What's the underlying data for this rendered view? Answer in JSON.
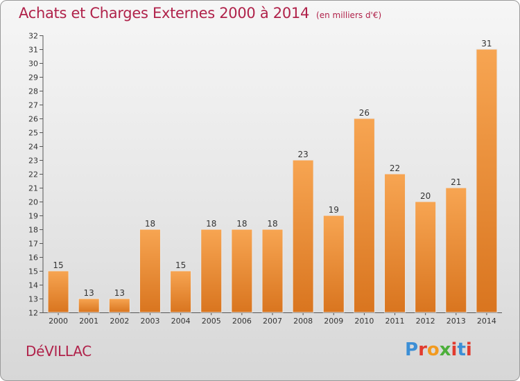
{
  "header": {
    "title": "Achats et Charges Externes 2000 à 2014",
    "unit": "(en milliers d'€)"
  },
  "footer": {
    "commune": "DéVILLAC",
    "logo_text": "Proxiti",
    "logo_colors": [
      "#3c8fd6",
      "#e23b2e",
      "#f29a1f",
      "#4caf3a",
      "#e23b2e",
      "#3c8fd6",
      "#e23b2e"
    ]
  },
  "colors": {
    "title": "#b0224a",
    "bar_light": "#f7a552",
    "bar_dark": "#d9751f"
  },
  "chart_data": {
    "type": "bar",
    "title": "Achats et Charges Externes 2000 à 2014",
    "subtitle": "(en milliers d'€)",
    "xlabel": "",
    "ylabel": "",
    "categories": [
      "2000",
      "2001",
      "2002",
      "2003",
      "2004",
      "2005",
      "2006",
      "2007",
      "2008",
      "2009",
      "2010",
      "2011",
      "2012",
      "2013",
      "2014"
    ],
    "values": [
      15,
      13,
      13,
      18,
      15,
      18,
      18,
      18,
      23,
      19,
      26,
      22,
      20,
      21,
      31
    ],
    "ylim": [
      12,
      32
    ],
    "yticks": [
      12,
      13,
      14,
      15,
      16,
      17,
      18,
      19,
      20,
      21,
      22,
      23,
      24,
      25,
      26,
      27,
      28,
      29,
      30,
      31,
      32
    ],
    "grid": false,
    "legend": "none"
  }
}
